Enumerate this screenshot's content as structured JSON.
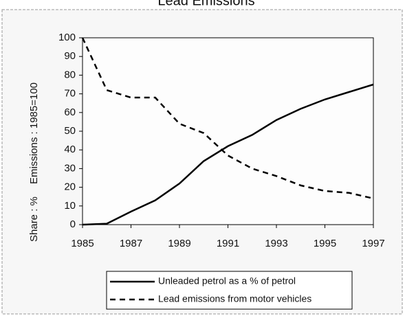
{
  "chart_data": {
    "type": "line",
    "title": "Lead Emissions",
    "y_labels": [
      "Share : %",
      "Emissions : 1985=100"
    ],
    "x": [
      1985,
      1986,
      1987,
      1988,
      1989,
      1990,
      1991,
      1992,
      1993,
      1994,
      1995,
      1996,
      1997
    ],
    "series": [
      {
        "name": "Unleaded petrol as a % of petrol",
        "color": "#000000",
        "dash": "solid",
        "values": [
          0,
          0.5,
          7,
          13,
          22,
          34,
          42,
          48,
          56,
          62,
          67,
          71,
          75
        ]
      },
      {
        "name": "Lead emissions from motor vehicles",
        "color": "#000000",
        "dash": "dashed",
        "values": [
          100,
          72,
          68,
          68,
          54,
          49,
          37,
          30,
          26,
          21,
          18,
          17,
          14
        ]
      }
    ],
    "xlim": [
      1985,
      1997
    ],
    "xticks": [
      1985,
      1987,
      1989,
      1991,
      1993,
      1995,
      1997
    ],
    "ylim": [
      0,
      100
    ],
    "yticks": [
      0,
      10,
      20,
      30,
      40,
      50,
      60,
      70,
      80,
      90,
      100
    ]
  }
}
